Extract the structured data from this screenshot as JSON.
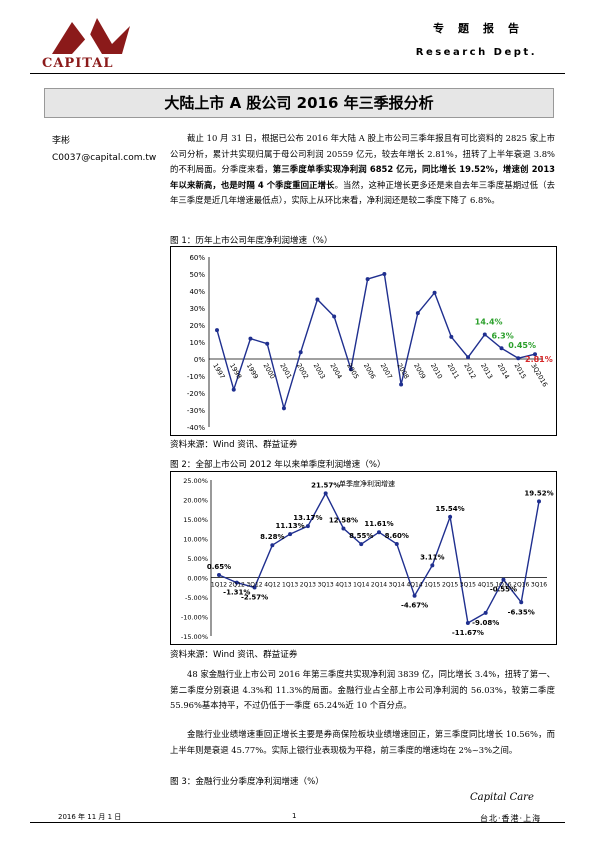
{
  "header": {
    "logo_text": "CAPITAL",
    "label_cn": "专题报告",
    "label_en": "Research Dept."
  },
  "title": "大陆上市 A 股公司 2016 年三季报分析",
  "author": {
    "name": "李彬",
    "email": "C0037@capital.com.tw"
  },
  "para1": {
    "text1": "截止 10 月 31 日，根据已公布 2016 年大陆 A 股上市公司三季年报且有可比资料的 2825 家上市公司分析，累计共实现归属于母公司利润 20559 亿元，较去年增长 2.81%，扭转了上半年衰退 3.8%的不利局面。分季度来看，",
    "bold": "第三季度单季实现净利润 6852 亿元，同比增长 19.52%，增速创 2013 年以来新高，也是时隔 4 个季度重回正增长",
    "text2": "。当然，这种正增长更多还是来自去年三季度基期过低（去年三季度是近几年增速最低点），实际上从环比来看，净利润还是较二季度下降了 6.8%。"
  },
  "fig1": {
    "label": "图 1：历年上市公司年度净利润增速（%）",
    "source": "资料来源：Wind 资讯、群益证券"
  },
  "fig2": {
    "label": "图 2：全部上市公司 2012 年以来单季度利润增速（%）",
    "source": "资料来源：Wind 资讯、群益证券"
  },
  "para2": "48 家金融行业上市公司 2016 年第三季度共实现净利润 3839 亿，同比增长 3.4%，扭转了第一、第二季度分别衰退 4.3%和 11.3%的局面。金融行业占全部上市公司净利润的 56.03%，较第二季度 55.96%基本持平，不过仍低于一季度 65.24%近 10 个百分点。",
  "para3": "金融行业业绩增速重回正增长主要是券商保险板块业绩增速回正，第三季度同比增长 10.56%，而上半年则是衰退 45.77%。实际上银行业表现极为平稳，前三季度的增速均在 2%~3%之间。",
  "fig3": {
    "label": "图 3：金融行业分季度净利润增速（%）"
  },
  "footer": {
    "date": "2016 年 11 月 1 日",
    "page": "1",
    "brand": "Capital Care",
    "cities": "台北·香港·上海"
  },
  "colors": {
    "line": "#1f2f8f",
    "logo": "#8b1a1a",
    "green": "#2ca02c",
    "red": "#d62728"
  },
  "chart_data": [
    {
      "type": "line",
      "categories": [
        "1997",
        "1998",
        "1999",
        "2000",
        "2001",
        "2002",
        "2003",
        "2004",
        "2005",
        "2006",
        "2007",
        "2008",
        "2009",
        "2010",
        "2011",
        "2012",
        "2013",
        "2014",
        "2015",
        "3Q2016"
      ],
      "values": [
        17,
        -18,
        12,
        9,
        -29,
        4,
        35,
        25,
        -6,
        47,
        50,
        -15,
        27,
        39,
        13,
        1,
        14.4,
        6.3,
        0.45,
        2.81
      ],
      "ylim": [
        -40,
        60
      ],
      "yticks": [
        "60%",
        "50%",
        "40%",
        "30%",
        "20%",
        "10%",
        "0%",
        "-10%",
        "-20%",
        "-30%",
        "-40%"
      ],
      "annotations": [
        {
          "index": 16,
          "text": "14.4%",
          "color": "green"
        },
        {
          "index": 17,
          "text": "6.3%",
          "color": "green"
        },
        {
          "index": 18,
          "text": "0.45%",
          "color": "green"
        },
        {
          "index": 19,
          "text": "2.81%",
          "color": "red"
        }
      ]
    },
    {
      "type": "line",
      "series_name": "单季度净利润增速",
      "categories": [
        "1Q12",
        "2Q12",
        "3Q12",
        "4Q12",
        "1Q13",
        "2Q13",
        "3Q13",
        "4Q13",
        "1Q14",
        "2Q14",
        "3Q14",
        "4Q14",
        "1Q15",
        "2Q15",
        "3Q15",
        "4Q15",
        "1Q16",
        "2Q16",
        "3Q16"
      ],
      "values": [
        0.65,
        -1.31,
        -2.57,
        8.28,
        11.13,
        13.17,
        21.57,
        12.58,
        8.55,
        11.61,
        8.6,
        -4.67,
        3.11,
        15.54,
        -11.67,
        -9.08,
        -0.55,
        -6.35,
        19.52
      ],
      "labels": [
        "0.65%",
        "-1.31%",
        "-2.57%",
        "8.28%",
        "11.13%",
        "13.17%",
        "21.57%",
        "12.58%",
        "8.55%",
        "11.61%",
        "8.60%",
        "-4.67%",
        "3.11%",
        "15.54%",
        "-11.67%",
        "-9.08%",
        "-0.55%",
        "-6.35%",
        "19.52%"
      ],
      "ylim": [
        -15,
        25
      ],
      "yticks": [
        "25.00%",
        "20.00%",
        "15.00%",
        "10.00%",
        "5.00%",
        "0.00%",
        "-5.00%",
        "-10.00%",
        "-15.00%"
      ]
    }
  ]
}
